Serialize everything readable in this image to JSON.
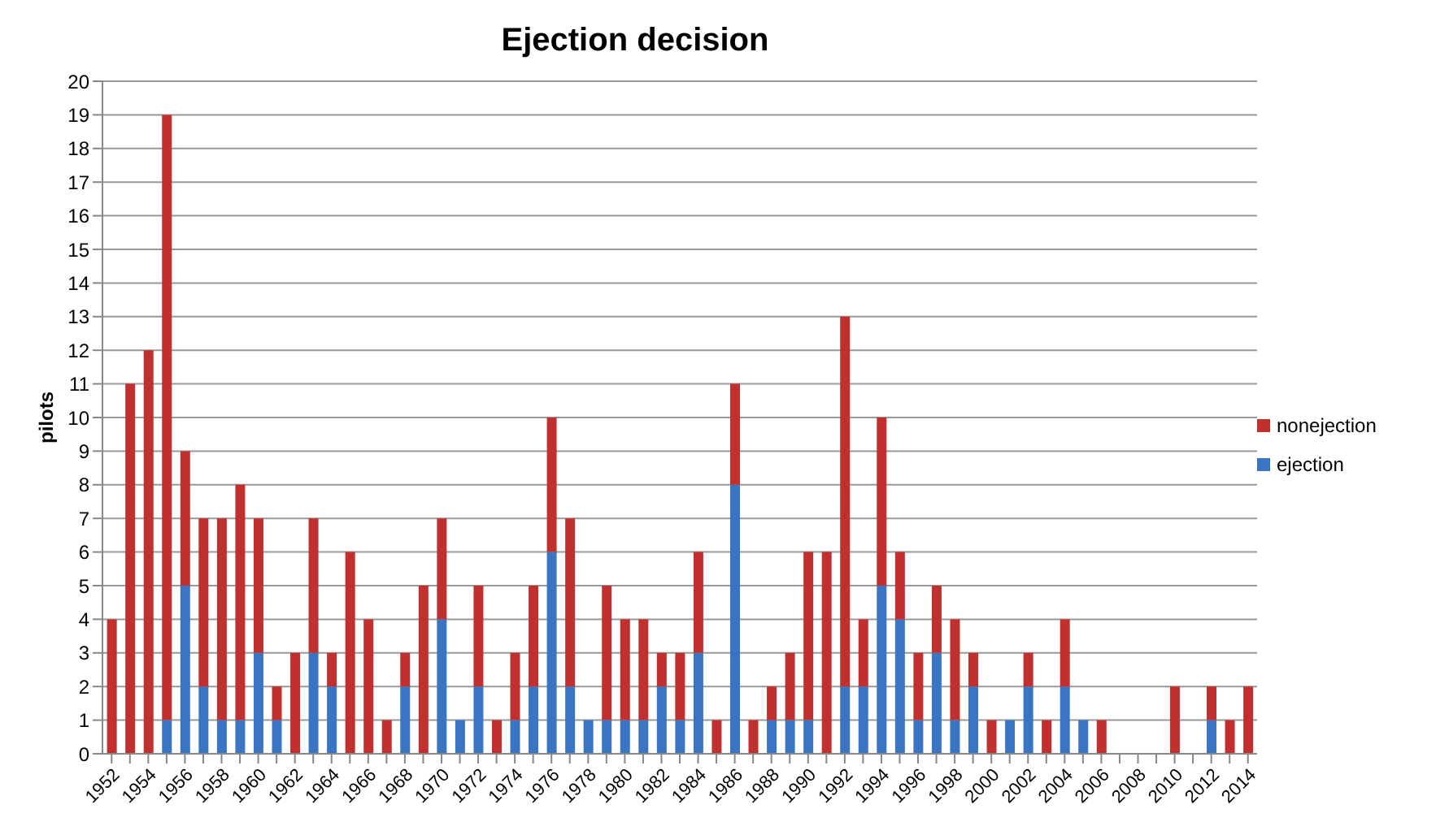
{
  "chart_data": {
    "type": "bar",
    "title": "Ejection decision",
    "ylabel": "pilots",
    "stacked": true,
    "categories": [
      "1952",
      null,
      "1954",
      null,
      "1956",
      null,
      "1958",
      null,
      "1960",
      null,
      "1962",
      null,
      "1964",
      null,
      "1966",
      null,
      "1968",
      null,
      "1970",
      null,
      "1972",
      null,
      "1974",
      null,
      "1976",
      null,
      "1978",
      null,
      "1980",
      null,
      "1982",
      null,
      "1984",
      null,
      "1986",
      null,
      "1988",
      null,
      "1990",
      null,
      "1992",
      null,
      "1994",
      null,
      "1996",
      null,
      "1998",
      null,
      "2000",
      null,
      "2002",
      null,
      "2004",
      null,
      "2006",
      null,
      "2008",
      null,
      "2010",
      null,
      "2012",
      null,
      "2014"
    ],
    "series": [
      {
        "name": "ejection",
        "color": "#3a75c3",
        "values": [
          0,
          0,
          0,
          1,
          5,
          2,
          1,
          1,
          3,
          1,
          0,
          3,
          2,
          0,
          0,
          0,
          2,
          0,
          4,
          1,
          2,
          0,
          1,
          2,
          6,
          2,
          1,
          1,
          1,
          1,
          2,
          1,
          3,
          0,
          8,
          0,
          1,
          1,
          1,
          0,
          2,
          2,
          5,
          4,
          1,
          3,
          1,
          2,
          0,
          1,
          2,
          0,
          2,
          1,
          0,
          0,
          0,
          0,
          0,
          0,
          1,
          0,
          0
        ]
      },
      {
        "name": "nonejection",
        "color": "#c0302e",
        "values": [
          4,
          11,
          12,
          18,
          4,
          5,
          6,
          7,
          4,
          1,
          3,
          4,
          1,
          6,
          4,
          1,
          1,
          5,
          3,
          0,
          3,
          1,
          2,
          3,
          4,
          5,
          0,
          4,
          3,
          3,
          1,
          2,
          3,
          1,
          3,
          1,
          1,
          2,
          5,
          6,
          11,
          2,
          5,
          2,
          2,
          2,
          3,
          1,
          1,
          0,
          1,
          1,
          2,
          0,
          1,
          0,
          0,
          0,
          2,
          0,
          1,
          1,
          2
        ]
      }
    ],
    "ylim": [
      0,
      20
    ],
    "yticks": [
      0,
      1,
      2,
      3,
      4,
      5,
      6,
      7,
      8,
      9,
      10,
      11,
      12,
      13,
      14,
      15,
      16,
      17,
      18,
      19,
      20
    ],
    "grid": "y",
    "legend": "right"
  }
}
